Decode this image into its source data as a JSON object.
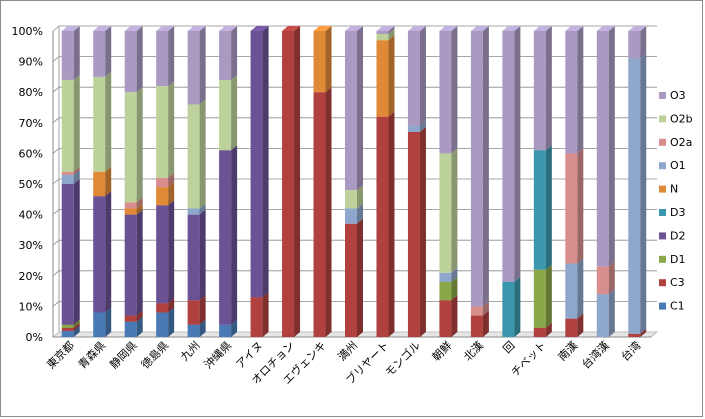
{
  "chart_data": {
    "type": "bar",
    "stacked": true,
    "percent": true,
    "title": "",
    "xlabel": "",
    "ylabel": "",
    "ylim": [
      0,
      100
    ],
    "yticks": [
      "0%",
      "10%",
      "20%",
      "30%",
      "40%",
      "50%",
      "60%",
      "70%",
      "80%",
      "90%",
      "100%"
    ],
    "grid": true,
    "legend_position": "right",
    "categories": [
      "東京都",
      "青森県",
      "静岡県",
      "徳島県",
      "九州",
      "沖縄県",
      "アイヌ",
      "オロチョン",
      "エヴェンキ",
      "満州",
      "ブリヤート",
      "モンゴル",
      "朝鮮",
      "北漢",
      "回",
      "チベット",
      "南漢",
      "台湾漢",
      "台湾"
    ],
    "series": [
      {
        "name": "C1",
        "color": "#4a7ab5",
        "values": [
          2,
          8,
          5,
          8,
          4,
          4,
          0,
          0,
          0,
          0,
          0,
          0,
          0,
          0,
          0,
          0,
          0,
          0,
          0
        ]
      },
      {
        "name": "C3",
        "color": "#b0413e",
        "values": [
          1,
          0,
          2,
          3,
          8,
          0,
          13,
          100,
          80,
          37,
          72,
          67,
          12,
          7,
          0,
          3,
          6,
          0,
          1
        ]
      },
      {
        "name": "D1",
        "color": "#8aa74a",
        "values": [
          1,
          0,
          0,
          0,
          0,
          0,
          0,
          0,
          0,
          0,
          0,
          0,
          6,
          0,
          0,
          19,
          0,
          0,
          0
        ]
      },
      {
        "name": "D2",
        "color": "#6b5295",
        "values": [
          46,
          38,
          33,
          32,
          28,
          57,
          87,
          0,
          0,
          0,
          0,
          0,
          0,
          0,
          0,
          0,
          0,
          0,
          0
        ]
      },
      {
        "name": "D3",
        "color": "#3b97ad",
        "values": [
          0,
          0,
          0,
          0,
          0,
          0,
          0,
          0,
          0,
          0,
          0,
          0,
          0,
          0,
          18,
          39,
          0,
          0,
          0
        ]
      },
      {
        "name": "N",
        "color": "#e08a38",
        "values": [
          0,
          8,
          2,
          6,
          0,
          0,
          0,
          0,
          20,
          0,
          25,
          0,
          0,
          0,
          0,
          0,
          0,
          0,
          0
        ]
      },
      {
        "name": "O1",
        "color": "#8fa7cc",
        "values": [
          3,
          0,
          0,
          0,
          2,
          0,
          0,
          0,
          0,
          5,
          0,
          2,
          3,
          0,
          0,
          0,
          18,
          14,
          90
        ]
      },
      {
        "name": "O2a",
        "color": "#d78e8d",
        "values": [
          1,
          0,
          2,
          3,
          0,
          0,
          0,
          0,
          0,
          0,
          0,
          0,
          0,
          3,
          0,
          0,
          36,
          9,
          0
        ]
      },
      {
        "name": "O2b",
        "color": "#bdd29a",
        "values": [
          30,
          31,
          36,
          30,
          34,
          23,
          0,
          0,
          0,
          6,
          2,
          0,
          39,
          0,
          0,
          0,
          0,
          0,
          0
        ]
      },
      {
        "name": "O3",
        "color": "#aa9ac2",
        "values": [
          16,
          15,
          20,
          18,
          24,
          16,
          0,
          0,
          0,
          52,
          1,
          31,
          40,
          90,
          82,
          39,
          40,
          77,
          9
        ]
      }
    ]
  }
}
